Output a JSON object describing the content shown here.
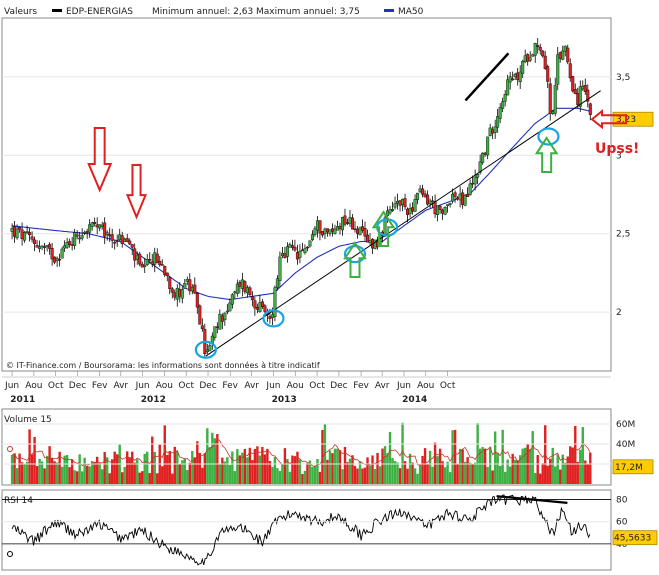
{
  "chart_data": {
    "type": "candlestick",
    "main": {
      "legend": {
        "values_label": "Valeurs",
        "series_name": "EDP-ENERGIAS",
        "minmax_text": "Minimum annuel: 2,63 Maximum annuel: 3,75",
        "ma_name": "MA50"
      },
      "y_ticks": [
        "3,5",
        "3",
        "2,5",
        "2"
      ],
      "ylim": [
        1.65,
        3.85
      ],
      "last_value_label": "3,23",
      "credit": "© IT-Finance.com / Boursorama: les informations sont données à titre indicatif",
      "anchor_prices": [
        [
          "2010-06-01",
          2.52
        ],
        [
          "2010-08-01",
          2.45
        ],
        [
          "2010-10-01",
          2.35
        ],
        [
          "2010-12-01",
          2.5
        ],
        [
          "2011-01-15",
          2.55
        ],
        [
          "2011-03-01",
          2.48
        ],
        [
          "2011-04-20",
          2.45
        ],
        [
          "2011-06-01",
          2.25
        ],
        [
          "2011-07-01",
          2.35
        ],
        [
          "2011-08-01",
          2.28
        ],
        [
          "2011-09-01",
          2.1
        ],
        [
          "2011-10-01",
          2.2
        ],
        [
          "2011-11-01",
          2.05
        ],
        [
          "2011-11-25",
          1.72
        ],
        [
          "2011-12-10",
          1.8
        ],
        [
          "2012-01-01",
          1.95
        ],
        [
          "2012-02-01",
          2.05
        ],
        [
          "2012-03-01",
          2.2
        ],
        [
          "2012-04-01",
          2.1
        ],
        [
          "2012-05-01",
          2.0
        ],
        [
          "2012-05-25",
          1.95
        ],
        [
          "2012-06-15",
          2.3
        ],
        [
          "2012-07-15",
          2.4
        ],
        [
          "2012-08-15",
          2.35
        ],
        [
          "2012-10-01",
          2.55
        ],
        [
          "2012-11-10",
          2.5
        ],
        [
          "2012-12-15",
          2.6
        ],
        [
          "2013-01-15",
          2.55
        ],
        [
          "2013-02-15",
          2.45
        ],
        [
          "2013-03-20",
          2.45
        ],
        [
          "2013-04-15",
          2.6
        ],
        [
          "2013-05-15",
          2.7
        ],
        [
          "2013-06-15",
          2.65
        ],
        [
          "2013-07-15",
          2.75
        ],
        [
          "2013-08-15",
          2.7
        ],
        [
          "2013-09-15",
          2.6
        ],
        [
          "2013-10-10",
          2.75
        ],
        [
          "2013-11-15",
          2.7
        ],
        [
          "2013-12-15",
          2.85
        ],
        [
          "2014-01-15",
          3.05
        ],
        [
          "2014-02-15",
          3.25
        ],
        [
          "2014-03-15",
          3.45
        ],
        [
          "2014-04-15",
          3.5
        ],
        [
          "2014-05-15",
          3.65
        ],
        [
          "2014-06-10",
          3.72
        ],
        [
          "2014-06-30",
          3.6
        ],
        [
          "2014-07-20",
          3.2
        ],
        [
          "2014-08-05",
          3.6
        ],
        [
          "2014-08-25",
          3.7
        ],
        [
          "2014-09-15",
          3.45
        ],
        [
          "2014-10-01",
          3.35
        ],
        [
          "2014-10-15",
          3.45
        ],
        [
          "2014-11-05",
          3.23
        ]
      ],
      "ma50_anchors": [
        [
          "2010-06-01",
          2.55
        ],
        [
          "2010-10-01",
          2.52
        ],
        [
          "2011-01-01",
          2.5
        ],
        [
          "2011-04-01",
          2.45
        ],
        [
          "2011-06-01",
          2.35
        ],
        [
          "2011-08-01",
          2.25
        ],
        [
          "2011-10-01",
          2.15
        ],
        [
          "2011-12-01",
          2.1
        ],
        [
          "2012-02-01",
          2.08
        ],
        [
          "2012-04-01",
          2.1
        ],
        [
          "2012-06-01",
          2.12
        ],
        [
          "2012-08-01",
          2.25
        ],
        [
          "2012-10-01",
          2.35
        ],
        [
          "2012-12-01",
          2.42
        ],
        [
          "2013-02-01",
          2.45
        ],
        [
          "2013-04-01",
          2.45
        ],
        [
          "2013-06-01",
          2.55
        ],
        [
          "2013-08-01",
          2.65
        ],
        [
          "2013-10-01",
          2.7
        ],
        [
          "2013-12-01",
          2.75
        ],
        [
          "2014-02-01",
          2.9
        ],
        [
          "2014-04-01",
          3.05
        ],
        [
          "2014-06-01",
          3.2
        ],
        [
          "2014-08-01",
          3.3
        ],
        [
          "2014-10-01",
          3.3
        ],
        [
          "2014-11-05",
          3.28
        ]
      ],
      "trendline": [
        [
          "2011-11-25",
          1.72
        ],
        [
          "2014-11-05",
          3.38
        ]
      ],
      "top_line": [
        [
          "2013-11-20",
          3.35
        ],
        [
          "2014-03-20",
          3.65
        ]
      ]
    },
    "x_axis": {
      "xlim": [
        "2010-05-15",
        "2014-11-20"
      ],
      "month_ticks": [
        {
          "date": "2010-06-01",
          "label": "Jun"
        },
        {
          "date": "2010-08-01",
          "label": "Aou"
        },
        {
          "date": "2010-10-01",
          "label": "Oct"
        },
        {
          "date": "2010-12-01",
          "label": "Dec"
        },
        {
          "date": "2011-02-01",
          "label": "Fev"
        },
        {
          "date": "2011-04-01",
          "label": "Avr"
        },
        {
          "date": "2011-06-01",
          "label": "Jun"
        },
        {
          "date": "2011-08-01",
          "label": "Aou"
        },
        {
          "date": "2011-10-01",
          "label": "Oct"
        },
        {
          "date": "2011-12-01",
          "label": "Dec"
        },
        {
          "date": "2012-02-01",
          "label": "Fev"
        },
        {
          "date": "2012-04-01",
          "label": "Avr"
        },
        {
          "date": "2012-06-01",
          "label": "Jun"
        },
        {
          "date": "2012-08-01",
          "label": "Aou"
        },
        {
          "date": "2012-10-01",
          "label": "Oct"
        },
        {
          "date": "2012-12-01",
          "label": "Dec"
        },
        {
          "date": "2013-02-01",
          "label": "Fev"
        },
        {
          "date": "2013-04-01",
          "label": "Avr"
        },
        {
          "date": "2013-06-01",
          "label": "Jun"
        },
        {
          "date": "2013-08-01",
          "label": "Aou"
        },
        {
          "date": "2013-10-01",
          "label": "Oct"
        }
      ],
      "year_labels": [
        {
          "date": "2010-07-01",
          "label": "2011"
        },
        {
          "date": "2011-07-01",
          "label": "2012"
        },
        {
          "date": "2012-07-01",
          "label": "2013"
        },
        {
          "date": "2013-07-01",
          "label": "2014"
        }
      ]
    },
    "volume": {
      "label": "Volume 15",
      "y_ticks": [
        "60M",
        "40M",
        "20M"
      ],
      "ylim": [
        0,
        70
      ],
      "last_value_label": "17,2M"
    },
    "rsi": {
      "label": "RSI 14",
      "y_ticks": [
        "80",
        "60",
        "40"
      ],
      "ylim": [
        20,
        85
      ],
      "last_value_label": "45,5633",
      "anchors": [
        [
          "2010-06-01",
          55
        ],
        [
          "2010-08-01",
          42
        ],
        [
          "2010-10-01",
          60
        ],
        [
          "2010-12-01",
          48
        ],
        [
          "2011-02-01",
          58
        ],
        [
          "2011-04-01",
          45
        ],
        [
          "2011-06-01",
          52
        ],
        [
          "2011-08-01",
          38
        ],
        [
          "2011-10-01",
          30
        ],
        [
          "2011-11-25",
          22
        ],
        [
          "2012-01-01",
          50
        ],
        [
          "2012-03-01",
          55
        ],
        [
          "2012-05-01",
          42
        ],
        [
          "2012-06-15",
          62
        ],
        [
          "2012-08-01",
          68
        ],
        [
          "2012-10-01",
          60
        ],
        [
          "2012-12-01",
          65
        ],
        [
          "2013-02-01",
          48
        ],
        [
          "2013-04-01",
          62
        ],
        [
          "2013-06-01",
          70
        ],
        [
          "2013-08-01",
          55
        ],
        [
          "2013-10-01",
          68
        ],
        [
          "2013-12-01",
          62
        ],
        [
          "2014-02-01",
          78
        ],
        [
          "2014-04-01",
          80
        ],
        [
          "2014-06-01",
          80
        ],
        [
          "2014-07-20",
          48
        ],
        [
          "2014-08-15",
          70
        ],
        [
          "2014-09-15",
          50
        ],
        [
          "2014-10-15",
          58
        ],
        [
          "2014-11-05",
          45.56
        ]
      ],
      "divergence_line": [
        [
          "2014-02-15",
          83
        ],
        [
          "2014-09-01",
          77
        ]
      ]
    },
    "annotations": {
      "upss_text": "Upss!",
      "red_arrows_down": [
        "2011-02-01",
        "2011-05-15"
      ],
      "green_arrows_up": [
        "2013-01-15",
        "2013-04-05",
        "2014-07-05"
      ],
      "blue_circles": [
        [
          "2011-11-25",
          1.76
        ],
        [
          "2012-06-01",
          1.96
        ],
        [
          "2013-01-15",
          2.37
        ],
        [
          "2013-04-15",
          2.54
        ],
        [
          "2014-07-10",
          3.12
        ]
      ],
      "colors": {
        "up": "#3cb043",
        "down": "#e02020",
        "ma": "#2233bb",
        "circle": "#1aa3e8",
        "green_arrow": "#3cb043",
        "red_arrow": "#e02020"
      }
    }
  }
}
